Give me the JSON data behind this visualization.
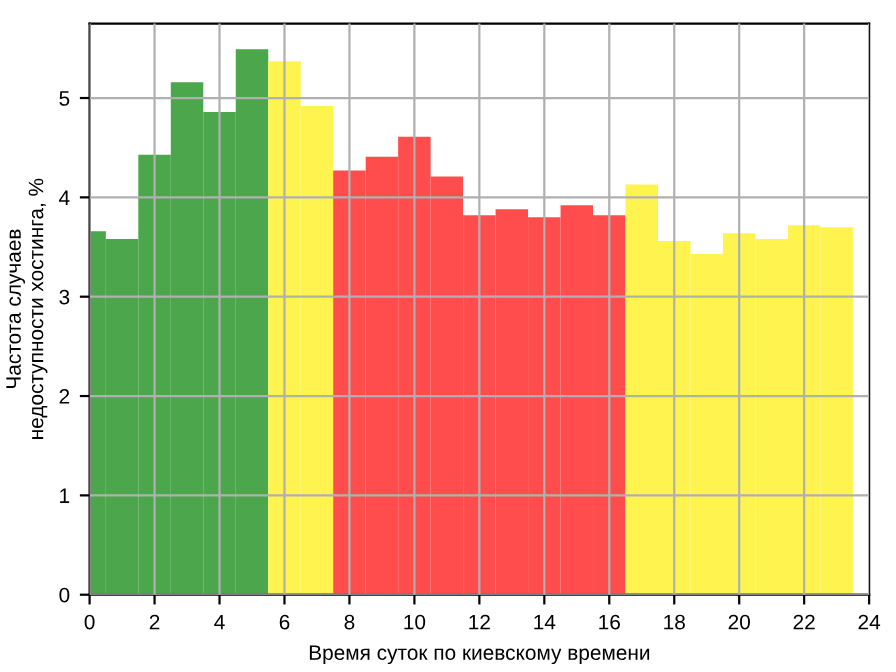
{
  "chart_data": {
    "type": "bar",
    "xlabel": "Время суток по киевскому времени",
    "ylabel": "Частота случаев\nнедоступности хостинга, %",
    "x": [
      0,
      1,
      2,
      3,
      4,
      5,
      6,
      7,
      8,
      9,
      10,
      11,
      12,
      13,
      14,
      15,
      16,
      17,
      18,
      19,
      20,
      21,
      22,
      23
    ],
    "values": [
      3.66,
      3.58,
      4.43,
      5.16,
      4.86,
      5.49,
      5.37,
      4.92,
      4.27,
      4.41,
      4.61,
      4.21,
      3.82,
      3.88,
      3.8,
      3.92,
      3.82,
      4.13,
      3.56,
      3.43,
      3.64,
      3.58,
      3.72,
      3.7
    ],
    "colors": [
      "#4ca64c",
      "#4ca64c",
      "#4ca64c",
      "#4ca64c",
      "#4ca64c",
      "#4ca64c",
      "#fff44f",
      "#fff44f",
      "#ff4c4c",
      "#ff4c4c",
      "#ff4c4c",
      "#ff4c4c",
      "#ff4c4c",
      "#ff4c4c",
      "#ff4c4c",
      "#ff4c4c",
      "#ff4c4c",
      "#fff44f",
      "#fff44f",
      "#fff44f",
      "#fff44f",
      "#fff44f",
      "#fff44f",
      "#fff44f"
    ],
    "xlim": [
      0,
      24
    ],
    "xticks": [
      0,
      2,
      4,
      6,
      8,
      10,
      12,
      14,
      16,
      18,
      20,
      22,
      24
    ],
    "ylim": [
      0,
      5.75
    ],
    "yticks": [
      0,
      1,
      2,
      3,
      4,
      5
    ],
    "grid": true
  }
}
